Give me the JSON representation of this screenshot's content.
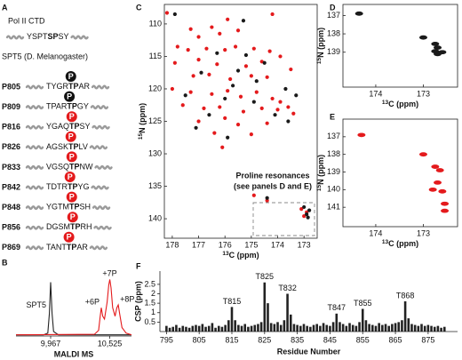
{
  "panel_labels": [
    "A",
    "B",
    "C",
    "D",
    "E",
    "F"
  ],
  "panel_a": {
    "ctd_label": "Pol II CTD",
    "ctd_seq": {
      "pre": "YSPT",
      "bold": "SP",
      "post": "SY"
    },
    "spt5_label": "SPT5 (D. Melanogaster)",
    "phospho": "P",
    "peptides": [
      {
        "name": "P805",
        "pre": "TYGR",
        "bold": "TP",
        "post": "AR",
        "color": "#111111"
      },
      {
        "name": "P809",
        "pre": "TPAR",
        "bold": "TP",
        "post": "GY",
        "color": "#111111"
      },
      {
        "name": "P816",
        "pre": "YGAQ",
        "bold": "TP",
        "post": "SY",
        "color": "#e41a1c"
      },
      {
        "name": "P826",
        "pre": "AGSK",
        "bold": "TP",
        "post": "LV",
        "color": "#e41a1c"
      },
      {
        "name": "P833",
        "pre": "VGSQ",
        "bold": "TP",
        "post": "NW",
        "color": "#e41a1c"
      },
      {
        "name": "P842",
        "pre": "TDTR",
        "bold": "TP",
        "post": "YG",
        "color": "#e41a1c"
      },
      {
        "name": "P848",
        "pre": "YGTM",
        "bold": "TP",
        "post": "SH",
        "color": "#e41a1c"
      },
      {
        "name": "P856",
        "pre": "DGSM",
        "bold": "TP",
        "post": "RH",
        "color": "#e41a1c"
      },
      {
        "name": "P869",
        "pre": "TANT",
        "bold": "TP",
        "post": "AR",
        "color": "#e41a1c"
      }
    ]
  },
  "chart_data": [
    {
      "type": "line",
      "xlabel": "MALDI MS",
      "xlim": [
        9640,
        10730
      ],
      "ylim": [
        0,
        1.1
      ],
      "xticks": [
        {
          "value": 9967,
          "label": "9,967"
        },
        {
          "value": 10525,
          "label": "10,525"
        }
      ],
      "annotations": [
        "+6P",
        "+7P",
        "+8P"
      ],
      "series": [
        {
          "name": "SPT5",
          "color": "#222222",
          "x": [
            9640,
            9900,
            9940,
            9955,
            9967,
            9980,
            9995,
            10040,
            10730
          ],
          "values": [
            0.02,
            0.02,
            0.05,
            0.4,
            0.95,
            0.4,
            0.08,
            0.02,
            0.02
          ]
        },
        {
          "color": "#e41a1c",
          "x": [
            9640,
            10380,
            10420,
            10435,
            10445,
            10458,
            10475,
            10500,
            10515,
            10525,
            10537,
            10552,
            10575,
            10592,
            10605,
            10618,
            10640,
            10680,
            10730
          ],
          "values": [
            0.02,
            0.03,
            0.1,
            0.35,
            0.5,
            0.35,
            0.3,
            0.6,
            0.9,
            1.0,
            0.85,
            0.5,
            0.35,
            0.5,
            0.55,
            0.4,
            0.15,
            0.05,
            0.02
          ]
        }
      ]
    },
    {
      "type": "scatter",
      "marker": "dot",
      "xlabel": [
        "13",
        "C (ppm)"
      ],
      "ylabel": [
        "15",
        "N (ppm)"
      ],
      "xlim": [
        178.3,
        172.5
      ],
      "ylim": [
        107,
        143
      ],
      "xticks": [
        178,
        177,
        176,
        175,
        174,
        173
      ],
      "yticks": [
        110,
        115,
        120,
        125,
        130,
        135,
        140
      ],
      "annotation": [
        "Proline resonances",
        "(see panels D and E)"
      ],
      "series": [
        {
          "color": "#e41a1c",
          "x": [
            178.2,
            177.3,
            177.0,
            176.5,
            175.9,
            174.2,
            176.2,
            175.5,
            177.8,
            177.4,
            176.7,
            176.0,
            175.6,
            174.9,
            174.3,
            173.9,
            177.9,
            177.0,
            176.3,
            175.2,
            174.6,
            173.5,
            177.2,
            176.6,
            175.8,
            175.0,
            174.4,
            178.0,
            177.3,
            176.5,
            175.9,
            175.4,
            174.8,
            174.2,
            173.9,
            173.6,
            177.6,
            176.8,
            176.2,
            175.3,
            174.6,
            174.0,
            173.4,
            177.0,
            176.0,
            175.5,
            174.4,
            176.4,
            175.0,
            176.1,
            174.9,
            174.4,
            173.1,
            172.9,
            173.0
          ],
          "values": [
            108.3,
            110.8,
            112.0,
            110.5,
            109.3,
            108.5,
            111.5,
            111.0,
            113.5,
            114.0,
            113.8,
            114.0,
            113.5,
            113.8,
            114.2,
            115.0,
            116.0,
            115.5,
            116.2,
            116.5,
            115.8,
            117.0,
            118.0,
            117.8,
            118.5,
            118.0,
            118.2,
            120.0,
            120.5,
            120.8,
            120.3,
            121.2,
            120.5,
            121.5,
            122.0,
            122.8,
            122.5,
            123.0,
            122.8,
            123.5,
            123.0,
            123.2,
            123.8,
            125.0,
            124.5,
            125.5,
            125.3,
            126.8,
            127.0,
            129.0,
            136.4,
            137.2,
            138.5,
            139.0,
            139.6
          ]
        },
        {
          "color": "#1a1a1a",
          "x": [
            177.9,
            175.3,
            176.3,
            175.2,
            174.5,
            176.9,
            175.5,
            174.8,
            173.7,
            177.5,
            176.0,
            174.9,
            174.1,
            176.6,
            175.7,
            173.3,
            177.1,
            173.6,
            175.9,
            174.4,
            173.0,
            172.8,
            172.9,
            172.85
          ],
          "values": [
            108.5,
            109.5,
            114.5,
            114.8,
            116.0,
            117.5,
            117.2,
            118.8,
            120.0,
            121.0,
            121.5,
            122.0,
            124.0,
            124.0,
            119.5,
            121.0,
            126.0,
            125.0,
            127.5,
            136.8,
            138.2,
            138.7,
            139.3,
            139.8
          ]
        }
      ]
    },
    {
      "type": "scatter",
      "marker": "ellipse",
      "xlabel": [
        "13",
        "C (ppm)"
      ],
      "ylabel": [
        "15",
        "N (ppm)"
      ],
      "xlim": [
        174.69,
        172.28
      ],
      "ylim": [
        136.4,
        140.9
      ],
      "xticks": [
        174,
        173
      ],
      "yticks": [
        137,
        138,
        139
      ],
      "series": [
        {
          "color": "#1a1a1a",
          "x": [
            174.35,
            173.0,
            172.75,
            172.7,
            172.75,
            172.6,
            172.7
          ],
          "values": [
            136.9,
            138.2,
            138.55,
            138.75,
            138.95,
            139.0,
            139.1
          ]
        }
      ]
    },
    {
      "type": "scatter",
      "marker": "ellipse",
      "xlabel": [
        "13",
        "C (ppm)"
      ],
      "ylabel": [
        "15",
        "N (ppm)"
      ],
      "xlim": [
        174.69,
        172.28
      ],
      "ylim": [
        136,
        142.1
      ],
      "xticks": [
        174,
        173
      ],
      "yticks": [
        137,
        138,
        139,
        140,
        141
      ],
      "series": [
        {
          "color": "#e41a1c",
          "x": [
            174.3,
            173.0,
            172.75,
            172.65,
            172.7,
            172.8,
            172.6,
            172.55,
            172.55
          ],
          "values": [
            136.9,
            138.0,
            138.7,
            138.9,
            139.6,
            140.0,
            140.1,
            140.8,
            141.2
          ]
        }
      ]
    },
    {
      "type": "bar",
      "xlabel": "Residue Number",
      "ylabel": "CSP (ppm)",
      "color": "#222222",
      "xlim": [
        793,
        884
      ],
      "ylim": [
        0,
        3.2
      ],
      "xticks": [
        795,
        805,
        815,
        825,
        835,
        845,
        855,
        865,
        875
      ],
      "yticks": [
        0.5,
        1,
        1.5,
        2,
        2.5
      ],
      "x": [
        795,
        796,
        797,
        798,
        799,
        800,
        801,
        802,
        803,
        804,
        805,
        806,
        807,
        808,
        809,
        810,
        811,
        812,
        813,
        814,
        815,
        816,
        817,
        818,
        819,
        820,
        821,
        822,
        823,
        824,
        825,
        826,
        827,
        828,
        829,
        830,
        831,
        832,
        833,
        834,
        835,
        836,
        837,
        838,
        839,
        840,
        841,
        842,
        843,
        844,
        845,
        846,
        847,
        848,
        849,
        850,
        851,
        852,
        853,
        854,
        855,
        856,
        857,
        858,
        859,
        860,
        861,
        862,
        863,
        864,
        865,
        866,
        867,
        868,
        869,
        870,
        871,
        872,
        873,
        874,
        875,
        876,
        877,
        878,
        879,
        880
      ],
      "values": [
        0.3,
        0.2,
        0.25,
        0.35,
        0.2,
        0.3,
        0.25,
        0.2,
        0.3,
        0.35,
        0.3,
        0.4,
        0.25,
        0.3,
        0.45,
        0.2,
        0.3,
        0.25,
        0.35,
        0.6,
        1.3,
        0.6,
        0.35,
        0.3,
        0.4,
        0.25,
        0.3,
        0.35,
        0.4,
        0.5,
        2.6,
        1.5,
        0.45,
        0.4,
        0.5,
        0.35,
        0.6,
        2.0,
        0.9,
        0.4,
        0.35,
        0.3,
        0.4,
        0.3,
        0.25,
        0.35,
        0.4,
        0.3,
        0.45,
        0.35,
        0.3,
        0.5,
        0.95,
        0.5,
        0.4,
        0.3,
        0.45,
        0.35,
        0.3,
        0.5,
        1.2,
        0.6,
        0.4,
        0.35,
        0.3,
        0.45,
        0.35,
        0.4,
        0.3,
        0.4,
        0.45,
        0.5,
        0.6,
        1.6,
        0.7,
        0.4,
        0.35,
        0.3,
        0.4,
        0.3,
        0.35,
        0.3,
        0.25,
        0.3,
        0.2,
        0.25
      ],
      "annotations": [
        {
          "x": 815,
          "label": "T815"
        },
        {
          "x": 825,
          "label": "T825"
        },
        {
          "x": 832,
          "label": "T832"
        },
        {
          "x": 847,
          "label": "T847"
        },
        {
          "x": 855,
          "label": "T855"
        },
        {
          "x": 868,
          "label": "T868"
        }
      ]
    }
  ]
}
